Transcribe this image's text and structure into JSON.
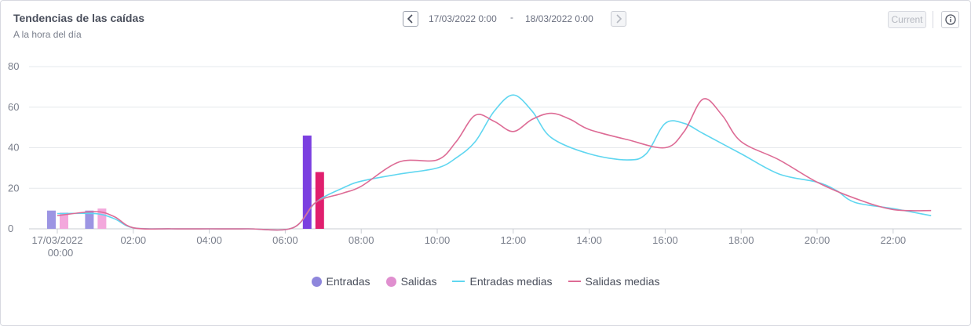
{
  "header": {
    "title": "Tendencias de las caídas",
    "subtitle": "A la hora del día",
    "date_start": "17/03/2022 0:00",
    "date_separator": "-",
    "date_end": "18/03/2022 0:00",
    "current_label": "Current"
  },
  "colors": {
    "entradas": "#9c95e3",
    "entradas_highlight": "#7b3fe0",
    "salidas": "#f3a8dc",
    "salidas_highlight": "#e01f6e",
    "entradas_medias": "#5fd6f0",
    "salidas_medias": "#dd6b95",
    "grid": "#e6e8ec"
  },
  "legend": [
    {
      "key": "entradas",
      "label": "Entradas"
    },
    {
      "key": "salidas",
      "label": "Salidas"
    },
    {
      "key": "entradas_medias",
      "label": "Entradas medias"
    },
    {
      "key": "salidas_medias",
      "label": "Salidas medias"
    }
  ],
  "chart_data": {
    "type": "bar",
    "title": "Tendencias de las caídas",
    "subtitle": "A la hora del día",
    "xlabel": "",
    "ylabel": "",
    "ylim": [
      0,
      80
    ],
    "y_ticks": [
      0,
      20,
      40,
      60,
      80
    ],
    "x_range": [
      0,
      24
    ],
    "x_tick_labels": [
      {
        "h": 0,
        "label": "17/03/2022",
        "label2": "00:00"
      },
      {
        "h": 2,
        "label": "02:00"
      },
      {
        "h": 4,
        "label": "04:00"
      },
      {
        "h": 6,
        "label": "06:00"
      },
      {
        "h": 8,
        "label": "08:00"
      },
      {
        "h": 10,
        "label": "10:00"
      },
      {
        "h": 12,
        "label": "12:00"
      },
      {
        "h": 14,
        "label": "14:00"
      },
      {
        "h": 16,
        "label": "16:00"
      },
      {
        "h": 18,
        "label": "18:00"
      },
      {
        "h": 20,
        "label": "20:00"
      },
      {
        "h": 22,
        "label": "22:00"
      }
    ],
    "grid": true,
    "legend_position": "bottom-center",
    "bars": {
      "hours": [
        0,
        1,
        7
      ],
      "entradas": [
        9,
        9,
        46
      ],
      "salidas": [
        8,
        10,
        28
      ],
      "highlight_hours": [
        7
      ]
    },
    "series": [
      {
        "name": "Entradas medias",
        "type": "line",
        "x": [
          0,
          1,
          1.5,
          2,
          3,
          4,
          5,
          6.2,
          6.8,
          7.5,
          8,
          9,
          10,
          10.5,
          11,
          11.5,
          12,
          12.5,
          13,
          14,
          15,
          15.5,
          16,
          16.5,
          17,
          18,
          19,
          20,
          20.5,
          21,
          22,
          23
        ],
        "values": [
          7.5,
          7.5,
          5,
          0.5,
          0,
          0,
          0,
          0.5,
          13,
          20,
          23.5,
          27,
          30,
          35,
          43,
          58,
          66,
          58,
          45,
          37,
          34,
          37,
          52,
          52,
          47,
          37,
          27,
          23,
          19,
          13,
          10,
          6.5
        ]
      },
      {
        "name": "Salidas medias",
        "type": "line",
        "x": [
          0,
          1,
          1.5,
          2,
          3,
          4,
          5,
          6.2,
          6.8,
          7.5,
          8,
          9,
          10,
          10.5,
          11,
          11.5,
          12,
          12.5,
          13,
          13.5,
          14,
          15,
          16,
          16.5,
          17,
          17.5,
          18,
          19,
          20,
          21,
          22,
          23
        ],
        "values": [
          6.5,
          8.5,
          6,
          0.5,
          0,
          0,
          0,
          0.5,
          13,
          17.5,
          21,
          33,
          34,
          43,
          56,
          53,
          48,
          54,
          57,
          54,
          49,
          44,
          40,
          48,
          64,
          56,
          43,
          34,
          23,
          15,
          9.5,
          9
        ]
      }
    ]
  }
}
